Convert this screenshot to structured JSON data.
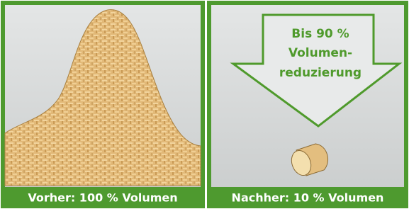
{
  "panels": [
    {
      "caption": "Vorher: 100 % Volumen"
    },
    {
      "caption": "Nachher: 10 % Volumen",
      "arrow": {
        "lines": [
          "Bis 90 %",
          "Volumen-",
          "reduzierung"
        ]
      }
    }
  ]
}
